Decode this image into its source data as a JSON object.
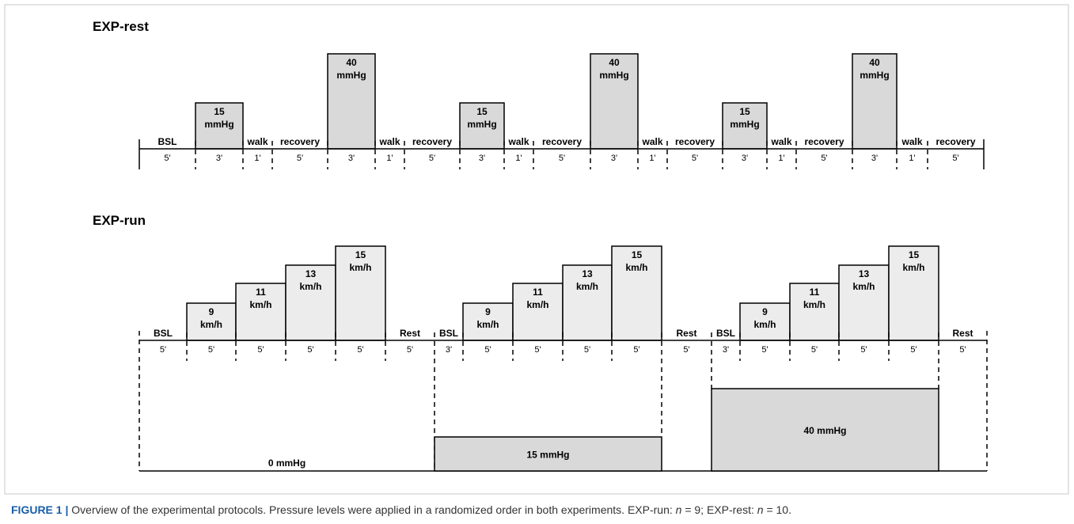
{
  "panels": [
    {
      "title": "EXP-rest",
      "segments": [
        {
          "label": "BSL",
          "duration": "5'"
        },
        {
          "label": [
            "15",
            "mmHg"
          ],
          "duration": "3'"
        },
        {
          "label": "walk",
          "duration": "1'"
        },
        {
          "label": "recovery",
          "duration": "5'"
        },
        {
          "label": [
            "40",
            "mmHg"
          ],
          "duration": "3'"
        },
        {
          "label": "walk",
          "duration": "1'"
        },
        {
          "label": "recovery",
          "duration": "5'"
        },
        {
          "label": [
            "15",
            "mmHg"
          ],
          "duration": "3'"
        },
        {
          "label": "walk",
          "duration": "1'"
        },
        {
          "label": "recovery",
          "duration": "5'"
        },
        {
          "label": [
            "40",
            "mmHg"
          ],
          "duration": "3'"
        },
        {
          "label": "walk",
          "duration": "1'"
        },
        {
          "label": "recovery",
          "duration": "5'"
        },
        {
          "label": [
            "15",
            "mmHg"
          ],
          "duration": "3'"
        },
        {
          "label": "walk",
          "duration": "1'"
        },
        {
          "label": "recovery",
          "duration": "5'"
        },
        {
          "label": [
            "40",
            "mmHg"
          ],
          "duration": "3'"
        },
        {
          "label": "walk",
          "duration": "1'"
        },
        {
          "label": "recovery",
          "duration": "5'"
        }
      ]
    },
    {
      "title": "EXP-run",
      "segments": [
        {
          "label": "BSL",
          "duration": "5'"
        },
        {
          "label": [
            "9",
            "km/h"
          ],
          "duration": "5'"
        },
        {
          "label": [
            "11",
            "km/h"
          ],
          "duration": "5'"
        },
        {
          "label": [
            "13",
            "km/h"
          ],
          "duration": "5'"
        },
        {
          "label": [
            "15",
            "km/h"
          ],
          "duration": "5'"
        },
        {
          "label": "Rest",
          "duration": "5'"
        },
        {
          "label": "BSL",
          "duration": "3'"
        },
        {
          "label": [
            "9",
            "km/h"
          ],
          "duration": "5'"
        },
        {
          "label": [
            "11",
            "km/h"
          ],
          "duration": "5'"
        },
        {
          "label": [
            "13",
            "km/h"
          ],
          "duration": "5'"
        },
        {
          "label": [
            "15",
            "km/h"
          ],
          "duration": "5'"
        },
        {
          "label": "Rest",
          "duration": "5'"
        },
        {
          "label": "BSL",
          "duration": "3'"
        },
        {
          "label": [
            "9",
            "km/h"
          ],
          "duration": "5'"
        },
        {
          "label": [
            "11",
            "km/h"
          ],
          "duration": "5'"
        },
        {
          "label": [
            "13",
            "km/h"
          ],
          "duration": "5'"
        },
        {
          "label": [
            "15",
            "km/h"
          ],
          "duration": "5'"
        },
        {
          "label": "Rest",
          "duration": "5'"
        }
      ],
      "pressures": [
        "0 mmHg",
        "15 mmHg",
        "40 mmHg"
      ]
    }
  ],
  "caption": {
    "label": "FIGURE 1 |",
    "parts": [
      "Overview of the experimental protocols. Pressure levels were applied in a randomized order in both experiments. EXP-run: ",
      "n",
      " = 9; EXP-rest: ",
      "n",
      " = 10."
    ]
  }
}
